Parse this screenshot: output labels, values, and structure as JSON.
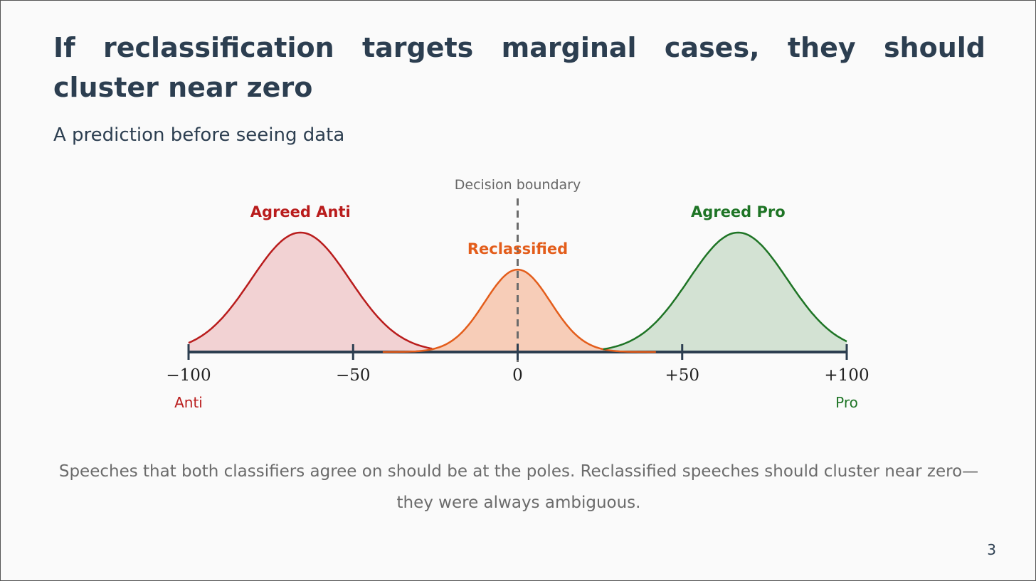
{
  "slide": {
    "title": "If reclassification targets marginal cases, they should cluster near zero",
    "subtitle": "A prediction before seeing data",
    "caption": "Speeches that both classifiers agree on should be at the poles. Reclassified speeches should cluster near zero—they were always ambiguous.",
    "page_number": "3"
  },
  "diagram": {
    "boundary_label": "Decision boundary",
    "axis": {
      "min": -100,
      "max": 100,
      "ticks": [
        {
          "value": -100,
          "label": "−100"
        },
        {
          "value": -50,
          "label": "−50"
        },
        {
          "value": 0,
          "label": "0"
        },
        {
          "value": 50,
          "label": "+50"
        },
        {
          "value": 100,
          "label": "+100"
        }
      ],
      "left_pole": "Anti",
      "right_pole": "Pro"
    },
    "curves": [
      {
        "label": "Agreed Anti",
        "color": "#b91c1c",
        "fill": "#f2d2d3",
        "center": -66,
        "spread": 15,
        "peak": 1.0,
        "from": -100,
        "to": -26
      },
      {
        "label": "Reclassified",
        "color": "#e35d1b",
        "fill": "#f7cdb8",
        "center": 0,
        "spread": 10,
        "peak": 0.69,
        "from": -41,
        "to": 42
      },
      {
        "label": "Agreed Pro",
        "color": "#1e7425",
        "fill": "#d3e2d3",
        "center": 67,
        "spread": 15,
        "peak": 1.0,
        "from": 26,
        "to": 100
      }
    ]
  }
}
